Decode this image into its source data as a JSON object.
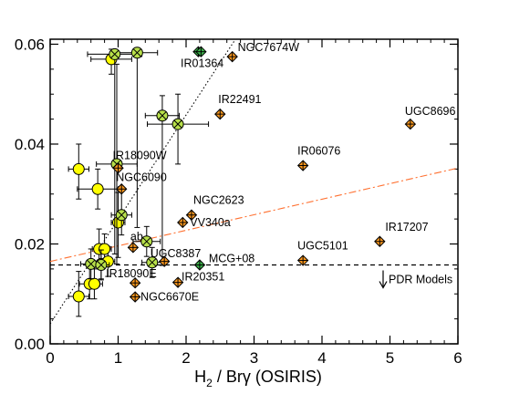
{
  "chart_data": {
    "type": "scatter",
    "xlabel_main": "H",
    "xlabel_sub": "2",
    "xlabel_rest": " / Brγ (OSIRIS)",
    "ylabel": "",
    "xlim": [
      0,
      6
    ],
    "ylim": [
      0,
      0.061
    ],
    "x_ticks": [
      0,
      1,
      2,
      3,
      4,
      5,
      6
    ],
    "x_tick_labels": [
      "0",
      "1",
      "2",
      "3",
      "4",
      "5",
      "6"
    ],
    "y_ticks": [
      0,
      0.02,
      0.04,
      0.06
    ],
    "y_tick_labels": [
      "0.00",
      "0.02",
      "0.04",
      "0.06"
    ],
    "grid": false,
    "colors": {
      "circle_fill": "#ffff00",
      "cross_fill": "#b8e04a",
      "diamond_orange": "#ff9a1e",
      "diamond_green": "#3cb34a",
      "fit_line": "#ff7030",
      "outline": "#000000"
    },
    "pdr_level": 0.0158,
    "pdr_label": "PDR Models",
    "fit_line": {
      "x": [
        0,
        6
      ],
      "y": [
        0.0165,
        0.0352
      ]
    },
    "one_to_one": {
      "x": [
        0,
        2.75
      ],
      "y": [
        0.004,
        0.0615
      ]
    },
    "circles": [
      {
        "x": 0.42,
        "y": 0.0095,
        "xerr": 0.15,
        "yerr_lo": 0.004,
        "yerr_hi": 0.005
      },
      {
        "x": 0.58,
        "y": 0.012,
        "xerr": 0.15,
        "yerr_lo": 0.003,
        "yerr_hi": 0.004
      },
      {
        "x": 0.65,
        "y": 0.012,
        "xerr": 0.12,
        "yerr_lo": 0.003,
        "yerr_hi": 0.003
      },
      {
        "x": 0.42,
        "y": 0.035,
        "xerr": 0.15,
        "yerr_lo": 0.006,
        "yerr_hi": 0.005
      },
      {
        "x": 0.7,
        "y": 0.031,
        "xerr": 0.3,
        "yerr_lo": 0.004,
        "yerr_hi": 0.004
      },
      {
        "x": 0.72,
        "y": 0.019,
        "xerr": 0.1,
        "yerr_lo": 0.003,
        "yerr_hi": 0.004
      },
      {
        "x": 0.8,
        "y": 0.019,
        "xerr": 0.1,
        "yerr_lo": 0.003,
        "yerr_hi": 0.003
      },
      {
        "x": 0.75,
        "y": 0.016,
        "xerr": 0.1,
        "yerr_lo": 0.003,
        "yerr_hi": 0.003
      },
      {
        "x": 0.85,
        "y": 0.0165,
        "xerr": 0.1,
        "yerr_lo": 0.003,
        "yerr_hi": 0.003
      },
      {
        "x": 1.0,
        "y": 0.0243,
        "xerr": 0.1,
        "yerr_lo": 0.007,
        "yerr_hi": 0.006
      },
      {
        "x": 0.9,
        "y": 0.057,
        "xerr": 0.3,
        "yerr_lo": 0.003,
        "yerr_hi": 0.002
      }
    ],
    "crosses": [
      {
        "x": 0.95,
        "y": 0.058,
        "xerr": 0.4,
        "yerr_lo": 0.04,
        "yerr_hi": 0.001
      },
      {
        "x": 1.28,
        "y": 0.0583,
        "xerr": 0.3,
        "yerr_lo": 0.035,
        "yerr_hi": 0.001
      },
      {
        "x": 1.65,
        "y": 0.0457,
        "xerr": 0.25,
        "yerr_lo": 0.03,
        "yerr_hi": 0.004
      },
      {
        "x": 1.88,
        "y": 0.044,
        "xerr": 0.45,
        "yerr_lo": 0.008,
        "yerr_hi": 0.006
      },
      {
        "x": 0.98,
        "y": 0.036,
        "xerr": 0.3,
        "yerr_lo": 0.02,
        "yerr_hi": 0.02
      },
      {
        "x": 1.05,
        "y": 0.0258,
        "xerr": 0.15,
        "yerr_lo": 0.004,
        "yerr_hi": 0.005
      },
      {
        "x": 1.42,
        "y": 0.0205,
        "xerr": 0.2,
        "yerr_lo": 0.003,
        "yerr_hi": 0.003
      },
      {
        "x": 1.5,
        "y": 0.0163,
        "xerr": 0.15,
        "yerr_lo": 0.003,
        "yerr_hi": 0.003
      },
      {
        "x": 0.6,
        "y": 0.016,
        "xerr": 0.15,
        "yerr_lo": 0.003,
        "yerr_hi": 0.003
      },
      {
        "x": 0.75,
        "y": 0.0158,
        "xerr": 0.12,
        "yerr_lo": 0.003,
        "yerr_hi": 0.003
      }
    ],
    "diamonds": [
      {
        "x": 2.18,
        "y": 0.0585,
        "color": "green",
        "xerr": 0.1,
        "yerr": 0.001
      },
      {
        "x": 2.22,
        "y": 0.0585,
        "color": "green",
        "xerr": 0.0,
        "yerr": 0.001
      },
      {
        "x": 2.68,
        "y": 0.0575,
        "color": "orange",
        "xerr": 0.0,
        "yerr": 0.001
      },
      {
        "x": 2.5,
        "y": 0.046,
        "color": "orange",
        "xerr": 0.0,
        "yerr": 0.001
      },
      {
        "x": 5.3,
        "y": 0.044,
        "color": "orange",
        "xerr": 0.0,
        "yerr": 0.001
      },
      {
        "x": 3.72,
        "y": 0.0357,
        "color": "orange",
        "xerr": 0.0,
        "yerr": 0.001
      },
      {
        "x": 1.05,
        "y": 0.031,
        "color": "orange",
        "xerr": 0.0,
        "yerr": 0.001
      },
      {
        "x": 1.0,
        "y": 0.0352,
        "color": "orange",
        "xerr": 0.0,
        "yerr": 0.001
      },
      {
        "x": 2.08,
        "y": 0.0258,
        "color": "orange",
        "xerr": 0.0,
        "yerr": 0.001
      },
      {
        "x": 1.95,
        "y": 0.0243,
        "color": "orange",
        "xerr": 0.0,
        "yerr": 0.001
      },
      {
        "x": 1.22,
        "y": 0.0193,
        "color": "orange",
        "xerr": 0.0,
        "yerr": 0.001
      },
      {
        "x": 1.68,
        "y": 0.0165,
        "color": "orange",
        "xerr": 0.0,
        "yerr": 0.001
      },
      {
        "x": 2.2,
        "y": 0.0158,
        "color": "green",
        "xerr": 0.0,
        "yerr": 0.001
      },
      {
        "x": 1.25,
        "y": 0.0122,
        "color": "orange",
        "xerr": 0.0,
        "yerr": 0.001
      },
      {
        "x": 1.88,
        "y": 0.0123,
        "color": "orange",
        "xerr": 0.0,
        "yerr": 0.001
      },
      {
        "x": 1.25,
        "y": 0.0094,
        "color": "orange",
        "xerr": 0.0,
        "yerr": 0.001
      },
      {
        "x": 3.72,
        "y": 0.0167,
        "color": "orange",
        "xerr": 0.0,
        "yerr": 0.001
      },
      {
        "x": 4.85,
        "y": 0.0205,
        "color": "orange",
        "xerr": 0.0,
        "yerr": 0.001
      }
    ],
    "annotations": [
      {
        "text": "NGC7674W",
        "x": 2.68,
        "y": 0.0575,
        "dx": 6,
        "dy": -6
      },
      {
        "text": "IR01364",
        "x": 2.0,
        "y": 0.0562,
        "dx": -6,
        "dy": 4
      },
      {
        "text": "IR22491",
        "x": 2.5,
        "y": 0.046,
        "dx": -2,
        "dy": -12
      },
      {
        "text": "UGC8696",
        "x": 5.3,
        "y": 0.044,
        "dx": -6,
        "dy": -10
      },
      {
        "text": "IR06076",
        "x": 3.72,
        "y": 0.0357,
        "dx": -6,
        "dy": -12
      },
      {
        "text": "IR18090W",
        "x": 1.0,
        "y": 0.0352,
        "dx": -6,
        "dy": -10
      },
      {
        "text": "NGC6090",
        "x": 1.05,
        "y": 0.031,
        "dx": -6,
        "dy": -9
      },
      {
        "text": "NGC2623",
        "x": 2.08,
        "y": 0.0258,
        "dx": 2,
        "dy": -12
      },
      {
        "text": "VV340a",
        "x": 1.95,
        "y": 0.0243,
        "dx": 8,
        "dy": 4
      },
      {
        "text": "ab",
        "x": 1.22,
        "y": 0.0193,
        "dx": -3,
        "dy": -8
      },
      {
        "text": "UGC8387",
        "x": 1.5,
        "y": 0.0163,
        "dx": -2,
        "dy": -6
      },
      {
        "text": "MCG+08",
        "x": 2.2,
        "y": 0.0158,
        "dx": 10,
        "dy": -3
      },
      {
        "text": "IR18090E",
        "x": 1.25,
        "y": 0.0122,
        "dx": -32,
        "dy": -6
      },
      {
        "text": "IR20351",
        "x": 1.88,
        "y": 0.0123,
        "dx": 4,
        "dy": -2
      },
      {
        "text": "NGC6670E",
        "x": 1.25,
        "y": 0.0094,
        "dx": 6,
        "dy": 4
      },
      {
        "text": "UGC5101",
        "x": 3.72,
        "y": 0.0167,
        "dx": -6,
        "dy": -12
      },
      {
        "text": "IR17207",
        "x": 4.85,
        "y": 0.0205,
        "dx": 6,
        "dy": -12
      }
    ]
  }
}
